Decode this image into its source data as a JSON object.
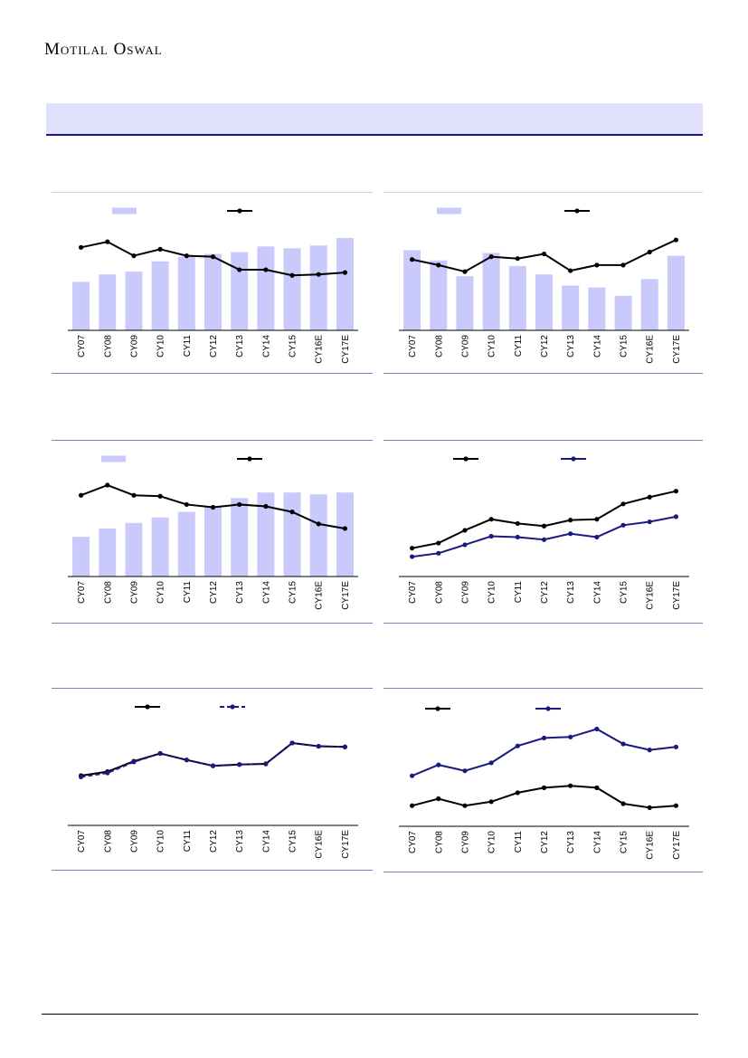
{
  "header": {
    "brand": "Motilal Oswal"
  },
  "colors": {
    "bar": "#c9c9fb",
    "line_black": "#000000",
    "line_navy": "#1a1a80",
    "rule": "#7f7fbf",
    "banner": "#e1e1fd"
  },
  "chart_data": [
    {
      "type": "bar",
      "categories": [
        "CY07",
        "CY08",
        "CY09",
        "CY10",
        "CY11",
        "CY12",
        "CY13",
        "CY14",
        "CY15",
        "CY16E",
        "CY17E"
      ],
      "series": [
        {
          "kind": "bar",
          "values": [
            52,
            60,
            63,
            74,
            79,
            82,
            84,
            90,
            88,
            91,
            99
          ]
        },
        {
          "kind": "line",
          "style": "solid",
          "color": "#000000",
          "values": [
            89,
            95,
            80,
            87,
            80,
            79,
            65,
            65,
            59,
            60,
            62
          ]
        }
      ],
      "ylim": [
        0,
        100
      ]
    },
    {
      "type": "bar",
      "categories": [
        "CY07",
        "CY08",
        "CY09",
        "CY10",
        "CY11",
        "CY12",
        "CY13",
        "CY14",
        "CY15",
        "CY16E",
        "CY17E"
      ],
      "series": [
        {
          "kind": "bar",
          "values": [
            86,
            75,
            58,
            83,
            69,
            60,
            48,
            46,
            37,
            55,
            80
          ]
        },
        {
          "kind": "line",
          "style": "solid",
          "color": "#000000",
          "values": [
            76,
            70,
            63,
            79,
            77,
            82,
            64,
            70,
            70,
            84,
            97
          ]
        }
      ],
      "ylim": [
        0,
        100
      ]
    },
    {
      "type": "bar",
      "categories": [
        "CY07",
        "CY08",
        "CY09",
        "CY10",
        "CY11",
        "CY12",
        "CY13",
        "CY14",
        "CY15",
        "CY16E",
        "CY17E"
      ],
      "series": [
        {
          "kind": "bar",
          "values": [
            43,
            52,
            58,
            64,
            70,
            75,
            85,
            91,
            91,
            89,
            91
          ]
        },
        {
          "kind": "line",
          "style": "solid",
          "color": "#000000",
          "values": [
            88,
            99,
            88,
            87,
            78,
            75,
            78,
            76,
            70,
            57,
            52
          ]
        }
      ],
      "ylim": [
        0,
        100
      ]
    },
    {
      "type": "line",
      "categories": [
        "CY07",
        "CY08",
        "CY09",
        "CY10",
        "CY11",
        "CY12",
        "CY13",
        "CY14",
        "CY15",
        "CY16E",
        "CY17E"
      ],
      "series": [
        {
          "kind": "line",
          "style": "solid",
          "color": "#000000",
          "values": [
            28,
            34,
            49,
            62,
            57,
            54,
            61,
            62,
            80,
            88,
            95
          ]
        },
        {
          "kind": "line",
          "style": "solid",
          "color": "#1a1a80",
          "values": [
            18,
            22,
            32,
            42,
            41,
            38,
            45,
            41,
            55,
            59,
            65
          ]
        }
      ],
      "ylim": [
        0,
        100
      ]
    },
    {
      "type": "line",
      "categories": [
        "CY07",
        "CY08",
        "CY09",
        "CY10",
        "CY11",
        "CY12",
        "CY13",
        "CY14",
        "CY15",
        "CY16E",
        "CY17E"
      ],
      "series": [
        {
          "kind": "line",
          "style": "solid",
          "color": "#000000",
          "values": [
            32,
            38,
            54,
            66,
            56,
            47,
            49,
            50,
            82,
            77,
            76
          ]
        },
        {
          "kind": "line",
          "style": "dashed",
          "color": "#1a1a80",
          "values": [
            30,
            36,
            53,
            66,
            56,
            47,
            49,
            50,
            82,
            77,
            76
          ]
        }
      ],
      "ylim": [
        0,
        100
      ]
    },
    {
      "type": "line",
      "categories": [
        "CY07",
        "CY08",
        "CY09",
        "CY10",
        "CY11",
        "CY12",
        "CY13",
        "CY14",
        "CY15",
        "CY16E",
        "CY17E"
      ],
      "series": [
        {
          "kind": "line",
          "style": "solid",
          "color": "#000000",
          "values": [
            18,
            25,
            18,
            22,
            31,
            36,
            38,
            36,
            20,
            16,
            18
          ]
        },
        {
          "kind": "line",
          "style": "solid",
          "color": "#1a1a80",
          "values": [
            48,
            59,
            53,
            61,
            78,
            86,
            87,
            95,
            80,
            74,
            77
          ]
        }
      ],
      "ylim": [
        0,
        100
      ]
    }
  ]
}
